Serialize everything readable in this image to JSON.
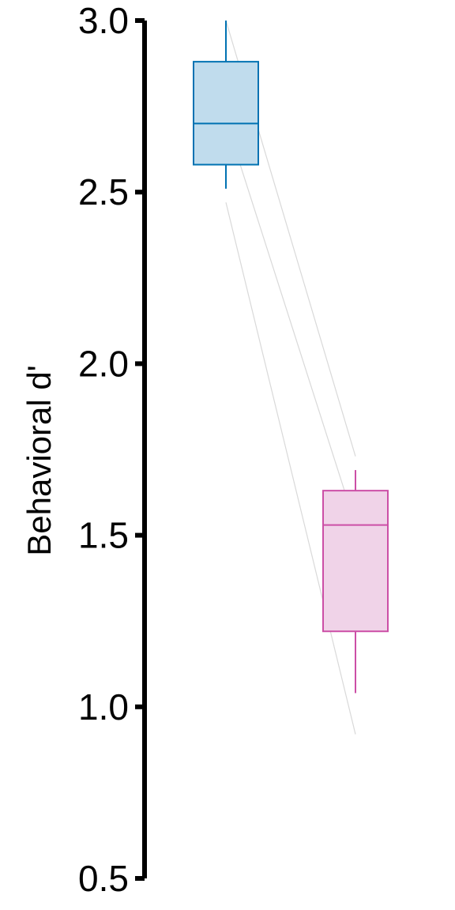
{
  "chart_data": {
    "type": "box",
    "ylabel": "Behavioral d'",
    "ylim": [
      0.5,
      3.0
    ],
    "y_ticks": [
      0.5,
      1.0,
      1.5,
      2.0,
      2.5,
      3.0
    ],
    "y_tick_labels": [
      "0.5",
      "1.0",
      "1.5",
      "2.0",
      "2.5",
      "3.0"
    ],
    "x_tick_labels": [],
    "grid": false,
    "legend": "none",
    "boxes": [
      {
        "x": 1,
        "whisker_low": 2.51,
        "q1": 2.58,
        "median": 2.7,
        "q3": 2.88,
        "whisker_high": 3.0,
        "stroke": "#0072B2",
        "fill": "#c0dced"
      },
      {
        "x": 2,
        "whisker_low": 1.04,
        "q1": 1.22,
        "median": 1.53,
        "q3": 1.63,
        "whisker_high": 1.69,
        "stroke": "#CC4FA6",
        "fill": "#f0d3e8"
      }
    ],
    "paired_lines": [
      {
        "y1": 3.0,
        "y2": 1.73
      },
      {
        "y1": 2.71,
        "y2": 1.53
      },
      {
        "y1": 2.47,
        "y2": 0.92
      }
    ],
    "paired_line_color": "#d9d9d9"
  }
}
